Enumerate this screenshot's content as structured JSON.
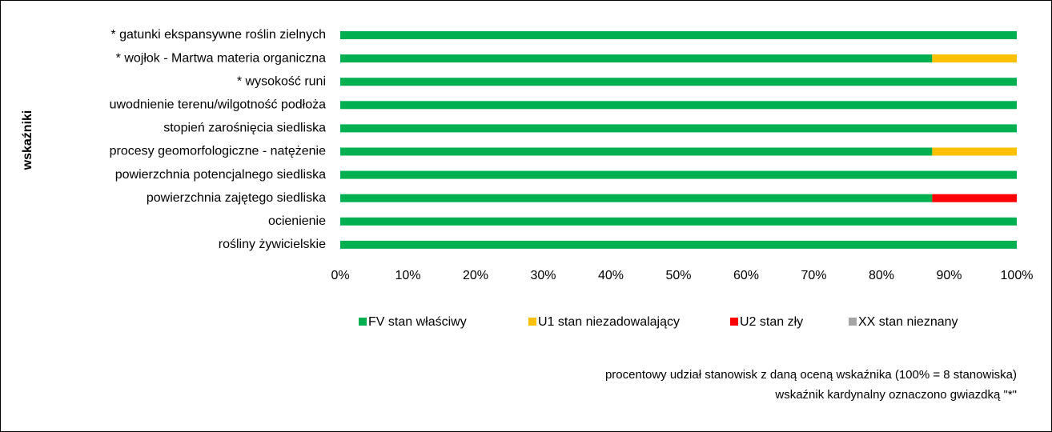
{
  "chart_data": {
    "type": "stacked_barh",
    "y_label": "wskaźniki",
    "categories": [
      "* gatunki ekspansywne roślin zielnych",
      "* wojłok - Martwa materia organiczna",
      "* wysokość runi",
      "uwodnienie terenu/wilgotność podłoża",
      "stopień zarośnięcia siedliska",
      "procesy geomorfologiczne - natężenie",
      "powierzchnia potencjalnego siedliska",
      "powierzchnia zajętego siedliska",
      "ocienienie",
      "rośliny żywicielskie"
    ],
    "series": [
      {
        "name": "FV stan właściwy",
        "color": "#00b050",
        "values": [
          100,
          87.5,
          100,
          100,
          100,
          87.5,
          100,
          87.5,
          100,
          100
        ]
      },
      {
        "name": "U1 stan niezadowalający",
        "color": "#ffc000",
        "values": [
          0,
          12.5,
          0,
          0,
          0,
          12.5,
          0,
          0,
          0,
          0
        ]
      },
      {
        "name": "U2 stan zły",
        "color": "#ff0000",
        "values": [
          0,
          0,
          0,
          0,
          0,
          0,
          0,
          12.5,
          0,
          0
        ]
      },
      {
        "name": "XX stan nieznany",
        "color": "#a5a5a5",
        "values": [
          0,
          0,
          0,
          0,
          0,
          0,
          0,
          0,
          0,
          0
        ]
      }
    ],
    "xlim": [
      0,
      100
    ],
    "xticks": [
      {
        "value": 0,
        "label": "0%"
      },
      {
        "value": 10,
        "label": "10%"
      },
      {
        "value": 20,
        "label": "20%"
      },
      {
        "value": 30,
        "label": "30%"
      },
      {
        "value": 40,
        "label": "40%"
      },
      {
        "value": 50,
        "label": "50%"
      },
      {
        "value": 60,
        "label": "60%"
      },
      {
        "value": 70,
        "label": "70%"
      },
      {
        "value": 80,
        "label": "80%"
      },
      {
        "value": 90,
        "label": "90%"
      },
      {
        "value": 100,
        "label": "100%"
      }
    ],
    "legend": "bottom",
    "notes": [
      "procentowy udział stanowisk z daną oceną wskaźnika (100% = 8 stanowiska)",
      "wskaźnik kardynalny oznaczono gwiazdką \"*\""
    ]
  }
}
